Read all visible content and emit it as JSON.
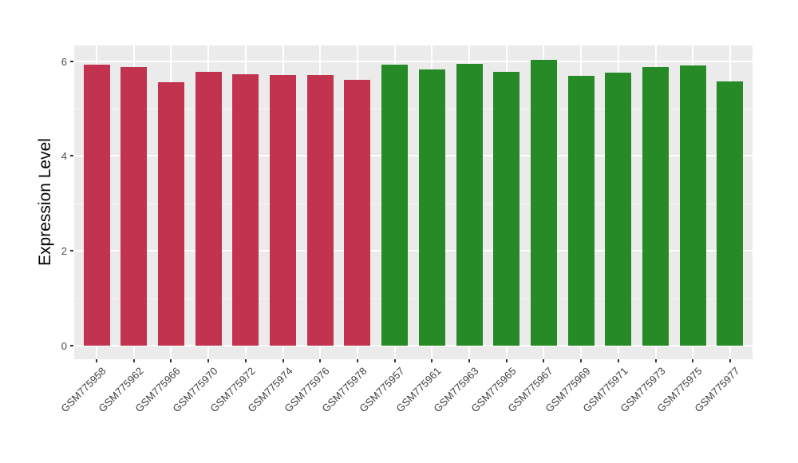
{
  "chart_data": {
    "type": "bar",
    "title": "",
    "xlabel": "",
    "ylabel": "Expression Level",
    "ylim": [
      0,
      6.33
    ],
    "yticks": [
      0,
      2,
      4,
      6
    ],
    "yticks_minor": [
      1,
      3,
      5
    ],
    "legend_position": "none",
    "grid": "horizontal major+minor, vertical major per category",
    "group_colors": {
      "red": "#C23350",
      "green": "#268B26"
    },
    "bars": [
      {
        "label": "GSM775958",
        "value": 5.92,
        "group": "red"
      },
      {
        "label": "GSM775962",
        "value": 5.88,
        "group": "red"
      },
      {
        "label": "GSM775966",
        "value": 5.56,
        "group": "red"
      },
      {
        "label": "GSM775970",
        "value": 5.78,
        "group": "red"
      },
      {
        "label": "GSM775972",
        "value": 5.73,
        "group": "red"
      },
      {
        "label": "GSM775974",
        "value": 5.7,
        "group": "red"
      },
      {
        "label": "GSM775976",
        "value": 5.7,
        "group": "red"
      },
      {
        "label": "GSM775978",
        "value": 5.61,
        "group": "red"
      },
      {
        "label": "GSM775957",
        "value": 5.93,
        "group": "green"
      },
      {
        "label": "GSM775961",
        "value": 5.82,
        "group": "green"
      },
      {
        "label": "GSM775963",
        "value": 5.95,
        "group": "green"
      },
      {
        "label": "GSM775965",
        "value": 5.77,
        "group": "green"
      },
      {
        "label": "GSM775967",
        "value": 6.03,
        "group": "green"
      },
      {
        "label": "GSM775969",
        "value": 5.69,
        "group": "green"
      },
      {
        "label": "GSM775971",
        "value": 5.75,
        "group": "green"
      },
      {
        "label": "GSM775973",
        "value": 5.87,
        "group": "green"
      },
      {
        "label": "GSM775975",
        "value": 5.91,
        "group": "green"
      },
      {
        "label": "GSM775977",
        "value": 5.58,
        "group": "green"
      }
    ]
  },
  "style": {
    "background": "#FFFFFF",
    "panel_bg": "#EBEBEB",
    "grid_color": "#FFFFFF",
    "axis_text_color": "#4D4D4D",
    "axis_title_color": "#000000",
    "tick_mark_color": "#333333"
  }
}
